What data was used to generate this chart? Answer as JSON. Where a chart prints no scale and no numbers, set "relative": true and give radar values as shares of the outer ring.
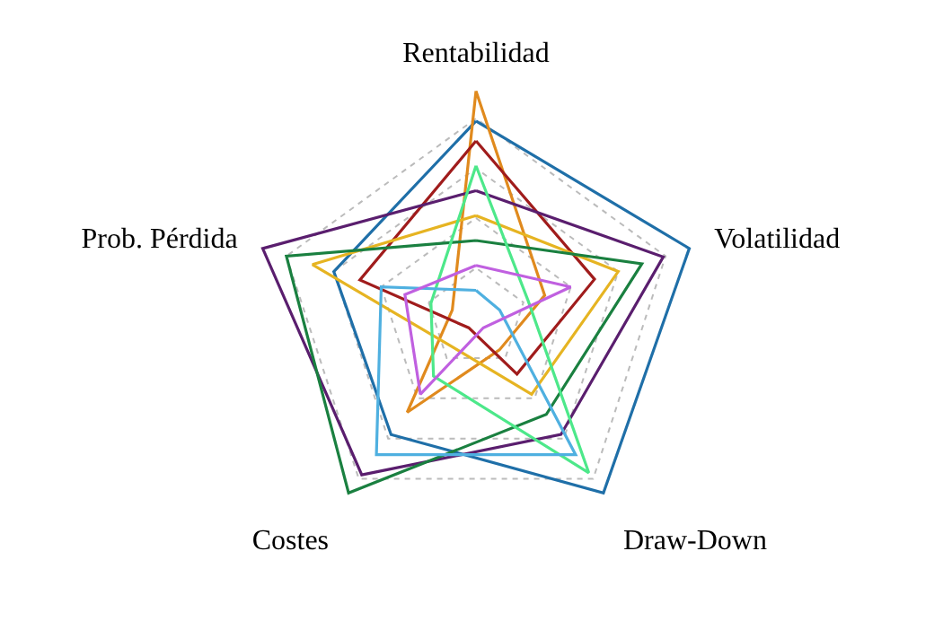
{
  "chart_data": {
    "type": "radar",
    "relative": true,
    "grid": true,
    "marker": "none",
    "line_style": "solid",
    "categories": [
      "Rentabilidad",
      "Volatilidad",
      "Draw-Down",
      "Costes",
      "Prob. Pérdida"
    ],
    "series": [
      {
        "color": "#1f6fa8",
        "values": [
          0.79,
          0.9,
          0.87,
          0.58,
          0.6
        ]
      },
      {
        "color": "#e08a1e",
        "values": [
          0.91,
          0.29,
          0.16,
          0.47,
          0.1
        ]
      },
      {
        "color": "#a01c1c",
        "values": [
          0.71,
          0.5,
          0.28,
          0.05,
          0.49
        ]
      },
      {
        "color": "#5a1e6e",
        "values": [
          0.51,
          0.79,
          0.58,
          0.78,
          0.9
        ]
      },
      {
        "color": "#e6b422",
        "values": [
          0.41,
          0.6,
          0.38,
          0.15,
          0.69
        ]
      },
      {
        "color": "#1a8040",
        "values": [
          0.31,
          0.7,
          0.48,
          0.87,
          0.8
        ]
      },
      {
        "color": "#4de88a",
        "values": [
          0.61,
          0.22,
          0.77,
          0.29,
          0.19
        ]
      },
      {
        "color": "#4fb0e0",
        "values": [
          0.11,
          0.1,
          0.68,
          0.68,
          0.4
        ]
      },
      {
        "color": "#c060e0",
        "values": [
          0.21,
          0.4,
          0.05,
          0.38,
          0.3
        ]
      }
    ]
  }
}
